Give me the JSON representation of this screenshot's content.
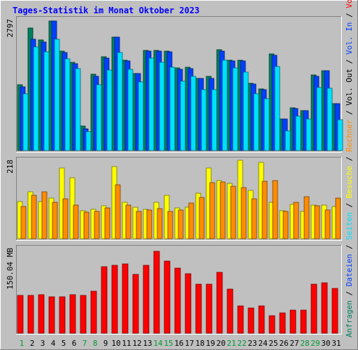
{
  "chart_data": {
    "type": "bar",
    "title": "Tages-Statistik im Monat Oktober 2023",
    "categories": [
      "1",
      "2",
      "3",
      "4",
      "5",
      "6",
      "7",
      "8",
      "9",
      "10",
      "11",
      "12",
      "13",
      "14",
      "15",
      "16",
      "17",
      "18",
      "19",
      "20",
      "21",
      "22",
      "23",
      "24",
      "25",
      "26",
      "27",
      "28",
      "29",
      "30",
      "31"
    ],
    "weekend_days": [
      "1",
      "7",
      "8",
      "14",
      "15",
      "21",
      "22",
      "28",
      "29"
    ],
    "weekend_color": "#009933",
    "weekday_color": "#000000",
    "panels": [
      {
        "name": "requests",
        "ytick": "2797",
        "ymax": 2797,
        "series": [
          {
            "name": "Anfragen",
            "color": "#007f5f",
            "values": [
              1420,
              2650,
              2390,
              2797,
              2140,
              1900,
              530,
              1650,
              2030,
              2450,
              1950,
              1670,
              2160,
              2160,
              2140,
              1780,
              1800,
              1560,
              1600,
              2180,
              1950,
              1950,
              1450,
              1330,
              2080,
              680,
              920,
              860,
              1640,
              1730,
              1010
            ]
          },
          {
            "name": "Dateien",
            "color": "#0040ff",
            "values": [
              1370,
              2410,
              2340,
              2797,
              2120,
              1880,
              470,
              1600,
              2000,
              2450,
              1940,
              1660,
              2150,
              2150,
              2130,
              1760,
              1770,
              1560,
              1550,
              2150,
              1940,
              1940,
              1440,
              1310,
              2060,
              680,
              900,
              860,
              1600,
              1720,
              1010
            ]
          },
          {
            "name": "Seiten",
            "color": "#00e0ff",
            "values": [
              1220,
              2240,
              2130,
              2400,
              1980,
              1770,
              410,
              1420,
              1740,
              2110,
              1750,
              1480,
              1990,
              1910,
              1800,
              1500,
              1600,
              1320,
              1320,
              1950,
              1780,
              1700,
              1230,
              1120,
              1810,
              420,
              740,
              680,
              1360,
              1350,
              670
            ]
          }
        ]
      },
      {
        "name": "visits",
        "ytick": "218",
        "ymax": 218,
        "series": [
          {
            "name": "Besuche",
            "color": "#ffff00",
            "values": [
              104,
              131,
              103,
              112,
              196,
              170,
              78,
              81,
              91,
              201,
              101,
              87,
              81,
              102,
              120,
              85,
              87,
              126,
              196,
              161,
              153,
              218,
              134,
              212,
              101,
              77,
              96,
              75,
              94,
              93,
              89
            ]
          },
          {
            "name": "Rechner",
            "color": "#ff8c00",
            "values": [
              90,
              121,
              131,
              102,
              111,
              94,
              74,
              76,
              86,
              149,
              94,
              76,
              80,
              83,
              75,
              79,
              100,
              115,
              155,
              157,
              146,
              143,
              111,
              160,
              162,
              76,
              101,
              117,
              92,
              80,
              112
            ]
          }
        ]
      },
      {
        "name": "volume",
        "ytick": "150.04 MB",
        "ymax": 212,
        "series": [
          {
            "name": "Volumen",
            "color": "#ff0000",
            "values": [
              95,
              95,
              98,
              92,
              91,
              98,
              96,
              106,
              168,
              172,
              175,
              148,
              172,
              207,
              182,
              165,
              150,
              124,
              124,
              153,
              112,
              69,
              64,
              69,
              45,
              52,
              58,
              58,
              124,
              127,
              113
            ]
          }
        ]
      }
    ],
    "right_labels": [
      {
        "text": "Anfragen",
        "color": "#007f5f"
      },
      {
        "text": " / ",
        "color": "#000000"
      },
      {
        "text": "Dateien",
        "color": "#0040ff"
      },
      {
        "text": " / ",
        "color": "#000000"
      },
      {
        "text": "Seiten",
        "color": "#00e0ff"
      },
      {
        "text": " / ",
        "color": "#000000"
      },
      {
        "text": "Besuche",
        "color": "#ffff00"
      },
      {
        "text": " / ",
        "color": "#000000"
      },
      {
        "text": "Rechner",
        "color": "#ff8c00"
      },
      {
        "text": " / ",
        "color": "#000000"
      },
      {
        "text": "Vol. Out",
        "color": "#000000"
      },
      {
        "text": " / ",
        "color": "#000000"
      },
      {
        "text": "Vol. In",
        "color": "#0040ff"
      },
      {
        "text": " / ",
        "color": "#000000"
      },
      {
        "text": "Volumen",
        "color": "#ff0000"
      }
    ]
  }
}
